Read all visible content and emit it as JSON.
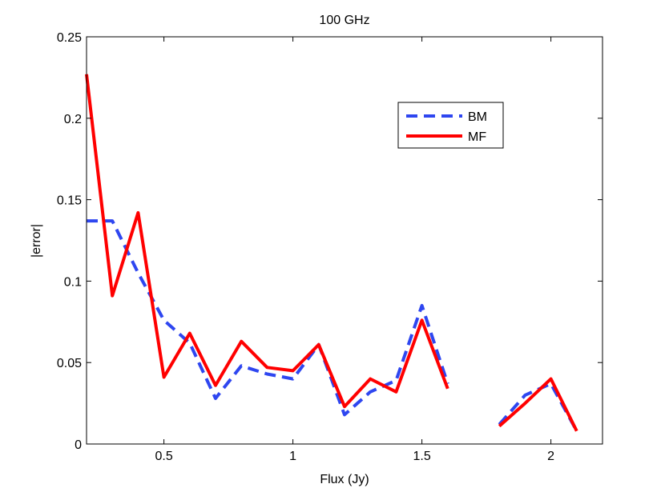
{
  "chart_data": {
    "type": "line",
    "title": "100 GHz",
    "xlabel": "Flux (Jy)",
    "ylabel": "|error|",
    "xlim": [
      0.2,
      2.2
    ],
    "ylim": [
      0,
      0.25
    ],
    "xticks": [
      0.5,
      1,
      1.5,
      2
    ],
    "xtick_labels": [
      "0.5",
      "1",
      "1.5",
      "2"
    ],
    "yticks": [
      0,
      0.05,
      0.1,
      0.15,
      0.2,
      0.25
    ],
    "ytick_labels": [
      "0",
      "0.05",
      "0.1",
      "0.15",
      "0.2",
      "0.25"
    ],
    "grid": false,
    "legend_position": "top-right",
    "series": [
      {
        "name": "BM",
        "color": "#2e46f0",
        "style": "dashed",
        "segments": [
          {
            "x": [
              0.2,
              0.3,
              0.4,
              0.5,
              0.6,
              0.7,
              0.8,
              0.9,
              1.0,
              1.1,
              1.2,
              1.3,
              1.4,
              1.5,
              1.6
            ],
            "y": [
              0.137,
              0.137,
              0.105,
              0.076,
              0.062,
              0.028,
              0.048,
              0.043,
              0.04,
              0.061,
              0.018,
              0.032,
              0.039,
              0.085,
              0.037
            ]
          },
          {
            "x": [
              1.8,
              1.9,
              2.0,
              2.1
            ],
            "y": [
              0.012,
              0.03,
              0.037,
              0.008
            ]
          }
        ]
      },
      {
        "name": "MF",
        "color": "#ff0000",
        "style": "solid",
        "segments": [
          {
            "x": [
              0.2,
              0.3,
              0.4,
              0.5,
              0.6,
              0.7,
              0.8,
              0.9,
              1.0,
              1.1,
              1.2,
              1.3,
              1.4,
              1.5,
              1.6
            ],
            "y": [
              0.227,
              0.091,
              0.142,
              0.041,
              0.068,
              0.036,
              0.063,
              0.047,
              0.045,
              0.061,
              0.023,
              0.04,
              0.032,
              0.076,
              0.034
            ]
          },
          {
            "x": [
              1.8,
              1.9,
              2.0,
              2.1
            ],
            "y": [
              0.011,
              0.025,
              0.04,
              0.008
            ]
          }
        ]
      }
    ]
  }
}
